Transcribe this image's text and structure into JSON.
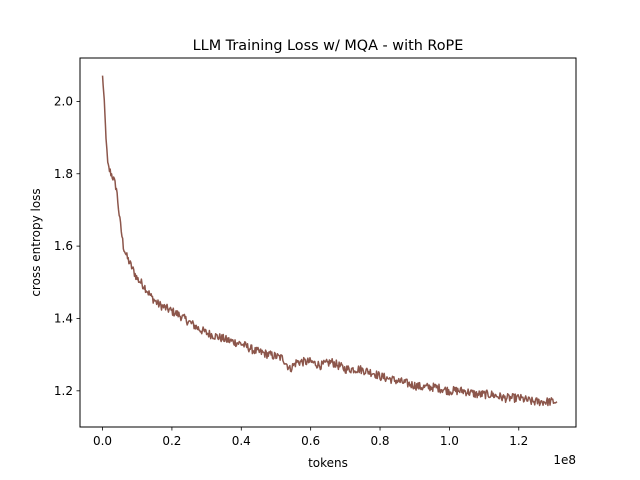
{
  "chart_data": {
    "type": "line",
    "title": "LLM Training Loss w/ MQA - with RoPE",
    "xlabel": "tokens",
    "ylabel": "cross entropy loss",
    "x_offset_label": "1e8",
    "xlim": [
      -0.065,
      1.365
    ],
    "ylim": [
      1.1,
      2.12
    ],
    "x_ticks": [
      0.0,
      0.2,
      0.4,
      0.6,
      0.8,
      1.0,
      1.2
    ],
    "x_tick_labels": [
      "0.0",
      "0.2",
      "0.4",
      "0.6",
      "0.8",
      "1.0",
      "1.2"
    ],
    "y_ticks": [
      1.2,
      1.4,
      1.6,
      1.8,
      2.0
    ],
    "y_tick_labels": [
      "1.2",
      "1.4",
      "1.6",
      "1.8",
      "2.0"
    ],
    "grid": false,
    "series": [
      {
        "name": "loss",
        "color": "#8c564b",
        "x": [
          0.0,
          0.005,
          0.01,
          0.015,
          0.02,
          0.03,
          0.04,
          0.05,
          0.06,
          0.07,
          0.08,
          0.1,
          0.12,
          0.14,
          0.16,
          0.18,
          0.2,
          0.22,
          0.25,
          0.28,
          0.3,
          0.33,
          0.36,
          0.4,
          0.44,
          0.48,
          0.52,
          0.54,
          0.56,
          0.6,
          0.63,
          0.66,
          0.7,
          0.74,
          0.78,
          0.8,
          0.84,
          0.88,
          0.92,
          0.96,
          1.0,
          1.04,
          1.08,
          1.12,
          1.16,
          1.2,
          1.24,
          1.28,
          1.31
        ],
        "y": [
          2.07,
          2.0,
          1.9,
          1.83,
          1.81,
          1.79,
          1.76,
          1.67,
          1.6,
          1.57,
          1.55,
          1.51,
          1.49,
          1.46,
          1.44,
          1.43,
          1.42,
          1.41,
          1.39,
          1.37,
          1.36,
          1.35,
          1.34,
          1.33,
          1.31,
          1.3,
          1.29,
          1.26,
          1.28,
          1.28,
          1.27,
          1.28,
          1.26,
          1.26,
          1.25,
          1.24,
          1.23,
          1.22,
          1.21,
          1.21,
          1.2,
          1.2,
          1.19,
          1.19,
          1.18,
          1.18,
          1.17,
          1.17,
          1.17
        ]
      }
    ]
  }
}
